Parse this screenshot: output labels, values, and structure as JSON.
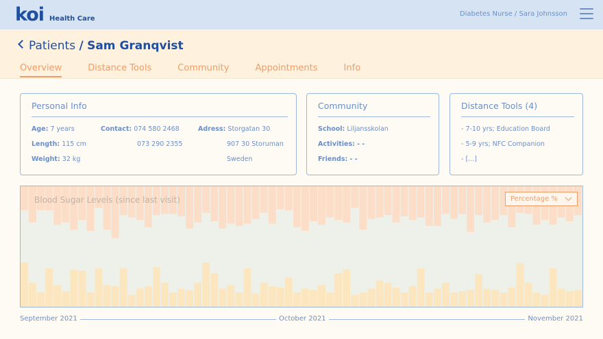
{
  "header": {
    "logo_main": "koi",
    "logo_sub": "Health Care",
    "user_role": "Diabetes Nurse / Sara Johnsson"
  },
  "breadcrumb": {
    "parent": "Patients",
    "separator": "/",
    "current": "Sam Granqvist"
  },
  "tabs": [
    {
      "label": "Overview",
      "active": true
    },
    {
      "label": "Distance Tools"
    },
    {
      "label": "Community"
    },
    {
      "label": "Appointments"
    },
    {
      "label": "Info"
    }
  ],
  "personal_info": {
    "title": "Personal Info",
    "age_label": "Age:",
    "age": "7 years",
    "length_label": "Length:",
    "length": "115 cm",
    "weight_label": "Weight:",
    "weight": "32 kg",
    "contact_label": "Contact:",
    "contact_1": "074 580 2468",
    "contact_2": "073 290 2355",
    "address_label": "Adress:",
    "address_1": "Storgatan 30",
    "address_2": "907 30 Storuman",
    "address_3": "Sweden"
  },
  "community": {
    "title": "Community",
    "school_label": "School:",
    "school": "Liljansskolan",
    "activities_label": "Activities:",
    "activities": "- -",
    "friends_label": "Friends:",
    "friends": "- -"
  },
  "distance_tools": {
    "title": "Distance Tools (4)",
    "items": [
      "- 7-10 yrs; Education Board",
      "- 5-9 yrs; NFC Companion",
      "-  [...]"
    ]
  },
  "chart": {
    "title": "Blood Sugar Levels (since last visit)",
    "dropdown": "Percentage %",
    "colors": {
      "high": "#fbddc8",
      "normal": "#eef1ea",
      "low": "#fbe6bf"
    }
  },
  "chart_data": {
    "type": "bar",
    "stacked": true,
    "ylim": [
      0,
      100
    ],
    "series": [
      {
        "name": "low",
        "values": [
          37,
          20,
          12,
          32,
          18,
          13,
          31,
          30,
          12,
          32,
          18,
          17,
          32,
          10,
          15,
          17,
          33,
          20,
          12,
          15,
          14,
          20,
          37,
          28,
          15,
          18,
          12,
          32,
          11,
          20,
          17,
          16,
          24,
          12,
          15,
          14,
          18,
          12,
          28,
          31,
          10,
          12,
          15,
          22,
          20,
          16,
          12,
          17,
          32,
          12,
          15,
          20,
          12,
          13,
          14,
          27,
          15,
          14,
          12,
          16,
          36,
          20,
          12,
          10,
          32,
          15,
          13,
          14
        ]
      },
      {
        "name": "normal",
        "values": [
          43,
          50,
          68,
          48,
          50,
          57,
          33,
          42,
          51,
          50,
          46,
          40,
          44,
          64,
          57,
          49,
          43,
          57,
          65,
          60,
          51,
          50,
          41,
          43,
          50,
          51,
          55,
          37,
          62,
          58,
          52,
          65,
          56,
          54,
          48,
          57,
          50,
          62,
          44,
          39,
          72,
          52,
          58,
          52,
          56,
          54,
          63,
          55,
          42,
          55,
          52,
          57,
          61,
          64,
          48,
          49,
          55,
          58,
          64,
          50,
          42,
          57,
          56,
          62,
          36,
          59,
          58,
          62
        ]
      },
      {
        "name": "high",
        "values": [
          20,
          30,
          20,
          20,
          32,
          30,
          36,
          28,
          37,
          18,
          36,
          43,
          24,
          26,
          28,
          34,
          24,
          23,
          23,
          25,
          35,
          30,
          22,
          29,
          35,
          31,
          33,
          31,
          27,
          22,
          31,
          19,
          20,
          34,
          37,
          29,
          32,
          26,
          28,
          30,
          18,
          36,
          27,
          26,
          24,
          30,
          25,
          28,
          26,
          33,
          33,
          23,
          27,
          23,
          38,
          24,
          30,
          28,
          24,
          34,
          22,
          23,
          32,
          28,
          32,
          26,
          29,
          24
        ]
      }
    ],
    "x_labels": [
      "September 2021",
      "October 2021",
      "November 2021"
    ]
  }
}
